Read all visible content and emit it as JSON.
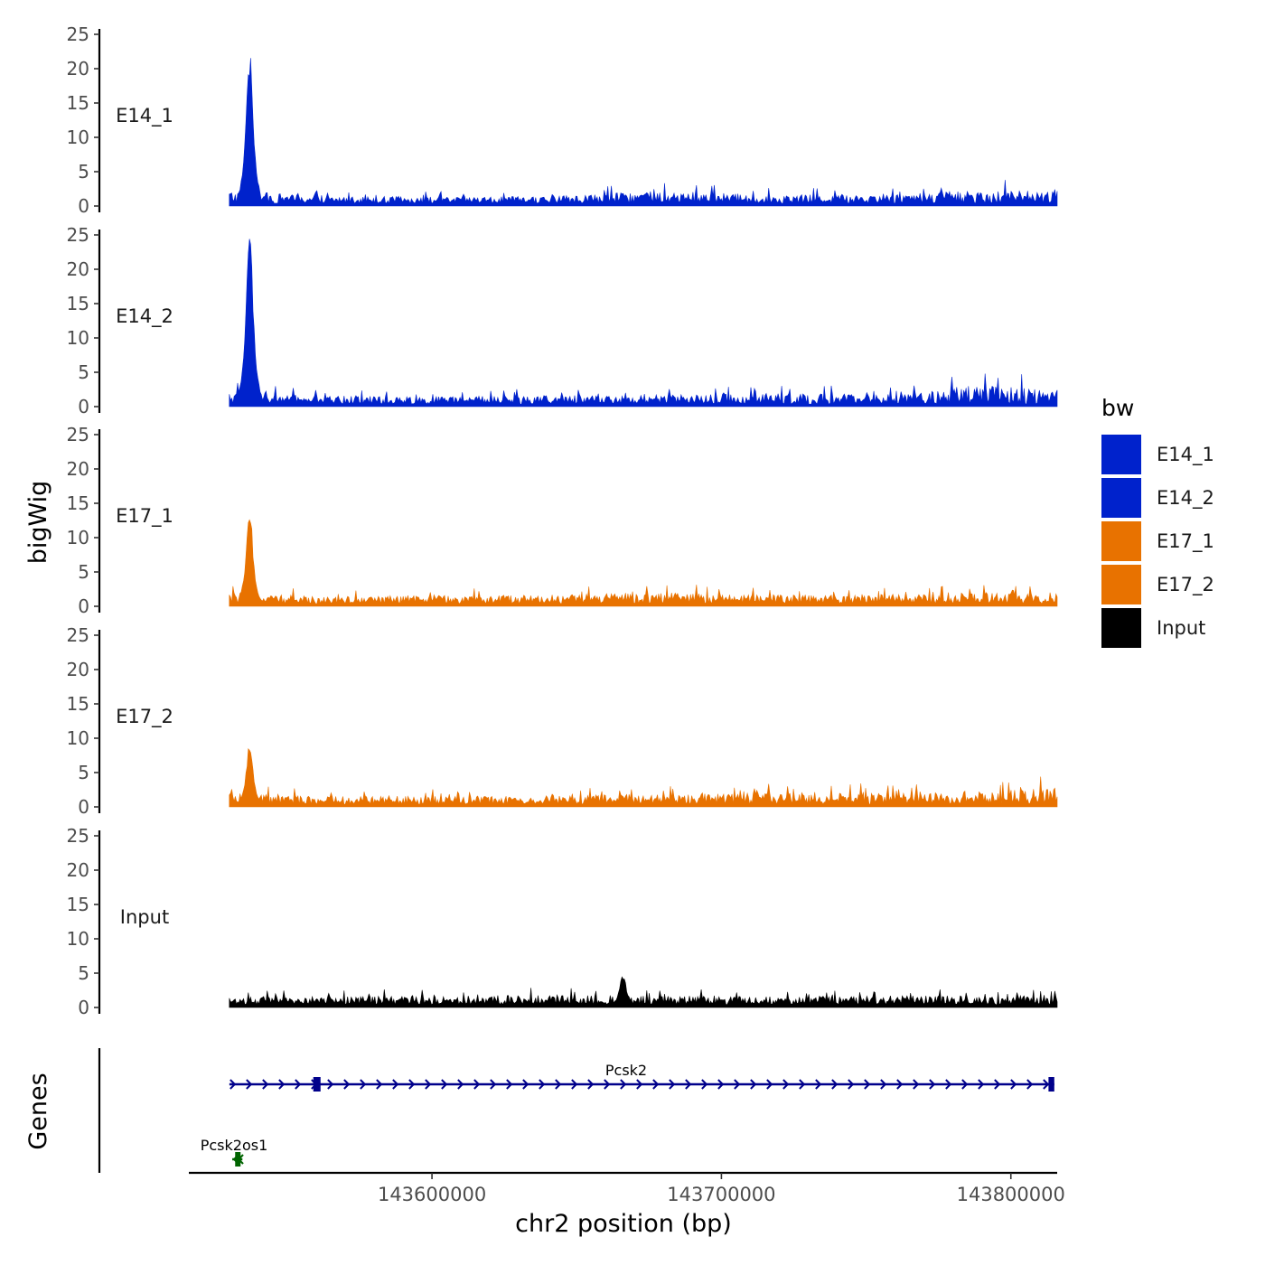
{
  "chart_data": {
    "type": "area",
    "title": "",
    "xlabel": "chr2 position (bp)",
    "ylabel": "bigWig",
    "genes_label": "Genes",
    "xlim": [
      143516000,
      143816000
    ],
    "x_ticks": [
      143600000,
      143700000,
      143800000
    ],
    "x_tick_labels": [
      "143600000",
      "143700000",
      "143800000"
    ],
    "ylim": [
      0,
      25
    ],
    "y_ticks": [
      0,
      5,
      10,
      15,
      20,
      25
    ],
    "y_tick_labels": [
      "0",
      "5",
      "10",
      "15",
      "20",
      "25"
    ],
    "signal_range": [
      143530000,
      143816000
    ],
    "series": [
      {
        "name": "E14_1",
        "color": "#0022CC",
        "baseline": 0.9,
        "noise": 1.4,
        "peak_pos": 143537000,
        "peak_value": 22,
        "profile_x": [
          143530000,
          143560000,
          143600000,
          143640000,
          143680000,
          143720000,
          143760000,
          143790000,
          143816000
        ],
        "profile_max": [
          3.5,
          2.0,
          1.8,
          1.9,
          3.4,
          2.2,
          2.8,
          3.6,
          3.3
        ]
      },
      {
        "name": "E14_2",
        "color": "#0022CC",
        "baseline": 0.9,
        "noise": 1.5,
        "peak_pos": 143537000,
        "peak_value": 24.5,
        "profile_x": [
          143530000,
          143560000,
          143600000,
          143640000,
          143680000,
          143720000,
          143760000,
          143790000,
          143816000
        ],
        "profile_max": [
          3.5,
          2.2,
          2.0,
          2.3,
          2.5,
          2.8,
          2.6,
          4.8,
          4.5
        ]
      },
      {
        "name": "E17_1",
        "color": "#E87200",
        "baseline": 0.9,
        "noise": 1.3,
        "peak_pos": 143537000,
        "peak_value": 12.8,
        "profile_x": [
          143530000,
          143560000,
          143600000,
          143640000,
          143680000,
          143720000,
          143760000,
          143790000,
          143816000
        ],
        "profile_max": [
          3.0,
          2.0,
          2.2,
          2.4,
          3.0,
          2.4,
          2.6,
          3.0,
          2.8
        ]
      },
      {
        "name": "E17_2",
        "color": "#E87200",
        "baseline": 0.9,
        "noise": 1.4,
        "peak_pos": 143537000,
        "peak_value": 8.5,
        "profile_x": [
          143530000,
          143560000,
          143600000,
          143640000,
          143680000,
          143720000,
          143760000,
          143790000,
          143816000
        ],
        "profile_max": [
          3.0,
          2.2,
          2.2,
          2.4,
          2.8,
          3.2,
          3.0,
          3.4,
          4.4
        ]
      },
      {
        "name": "Input",
        "color": "#000000",
        "baseline": 1.0,
        "noise": 1.1,
        "peak_pos": 143666000,
        "peak_value": 4.5,
        "profile_x": [
          143530000,
          143560000,
          143600000,
          143640000,
          143680000,
          143720000,
          143760000,
          143790000,
          143816000
        ],
        "profile_max": [
          2.0,
          2.2,
          2.3,
          2.6,
          2.4,
          2.2,
          2.4,
          2.4,
          2.6
        ]
      }
    ],
    "genes": [
      {
        "name": "Pcsk2",
        "strand": "+",
        "color": "#00008B",
        "start": 143530000,
        "end": 143815000,
        "exons": [
          [
            143559000,
            143561500
          ],
          [
            143813000,
            143815000
          ]
        ]
      },
      {
        "name": "Pcsk2os1",
        "strand": "-",
        "color": "#006400",
        "start": 143531000,
        "end": 143534500,
        "exons": [
          [
            143532000,
            143533500
          ]
        ]
      }
    ],
    "legend": {
      "title": "bw",
      "position": "right",
      "entries": [
        {
          "label": "E14_1",
          "color": "#0022CC"
        },
        {
          "label": "E14_2",
          "color": "#0022CC"
        },
        {
          "label": "E17_1",
          "color": "#E87200"
        },
        {
          "label": "E17_2",
          "color": "#E87200"
        },
        {
          "label": "Input",
          "color": "#000000"
        }
      ]
    }
  }
}
